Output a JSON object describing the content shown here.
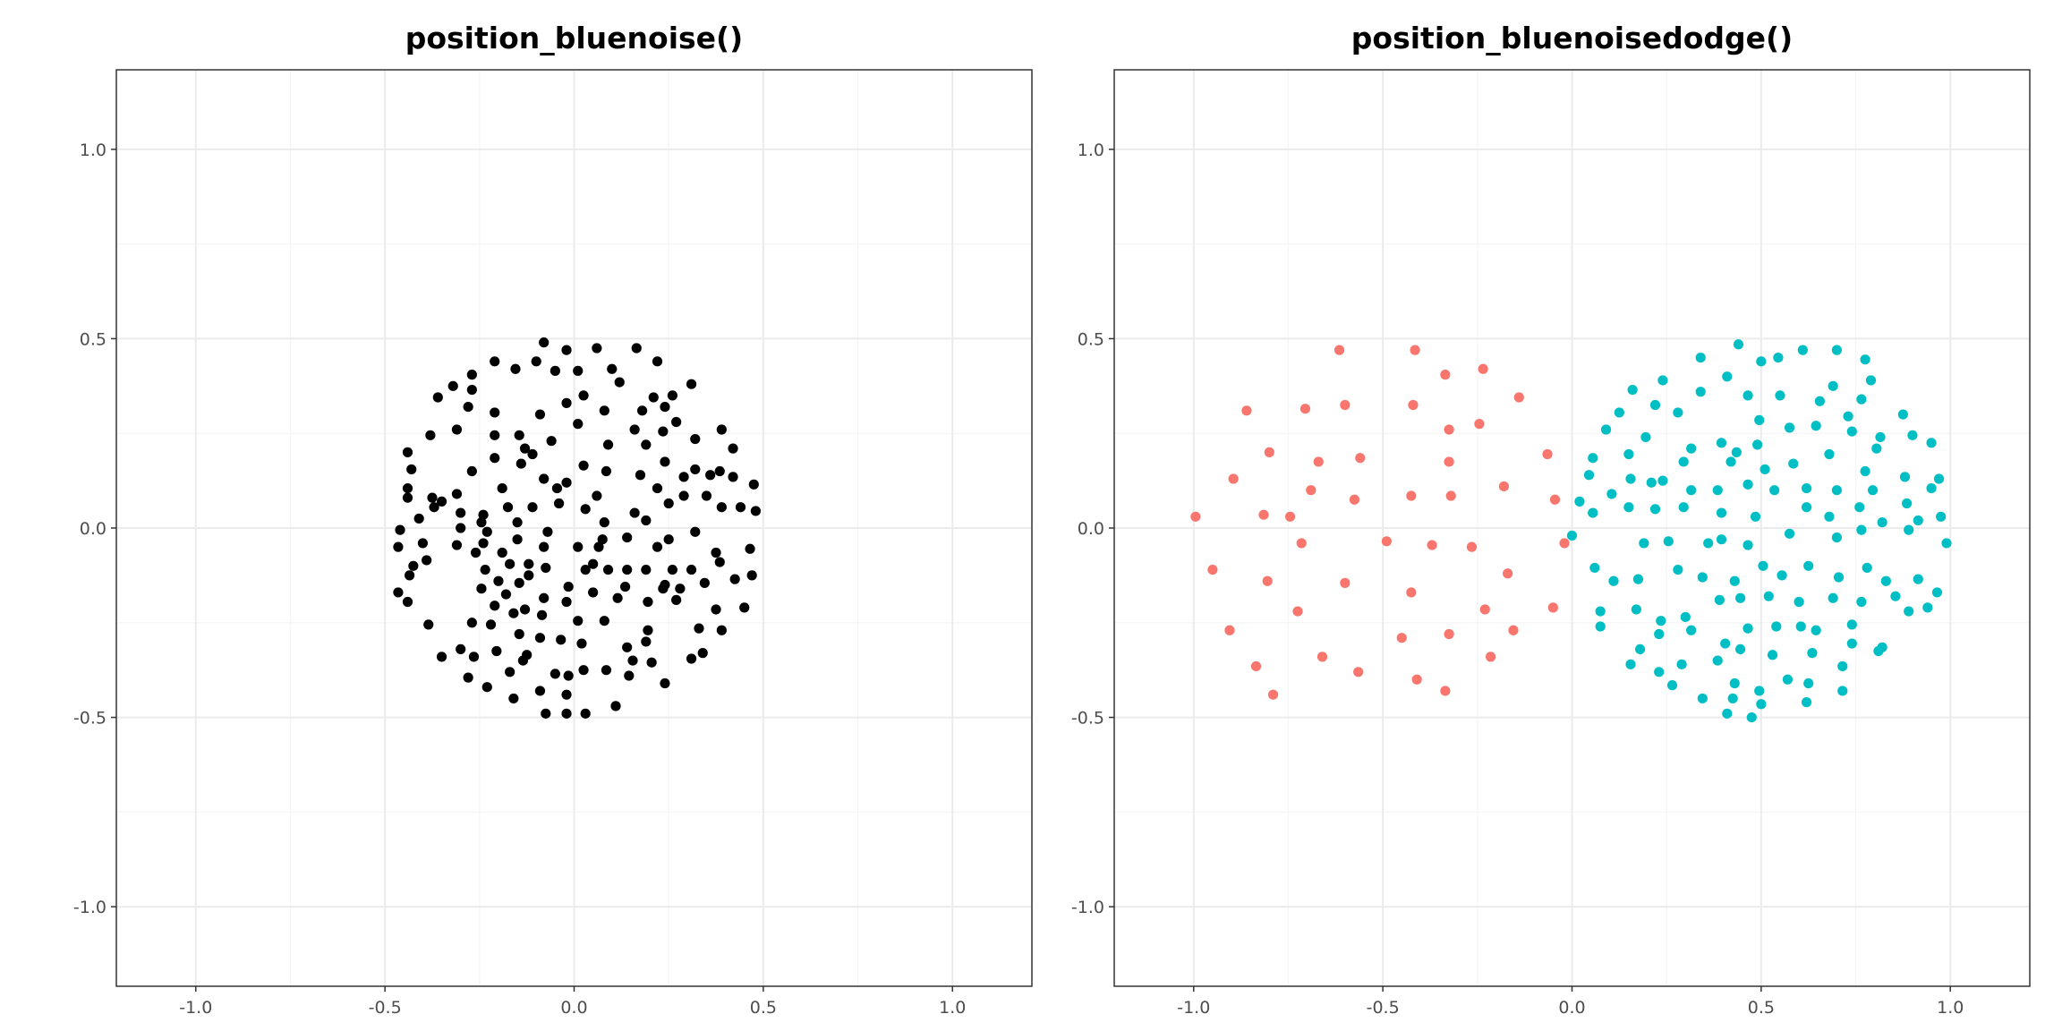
{
  "chart_data": [
    {
      "type": "scatter",
      "title": "position_bluenoise()",
      "xlim": [
        -1.21,
        1.21
      ],
      "ylim": [
        -1.21,
        1.21
      ],
      "xticks": [
        {
          "value": -1,
          "label": "-1.0"
        },
        {
          "value": -0.5,
          "label": "-0.5"
        },
        {
          "value": 0,
          "label": "0.0"
        },
        {
          "value": 0.5,
          "label": "0.5"
        },
        {
          "value": 1,
          "label": "1.0"
        }
      ],
      "yticks": [
        {
          "value": -1,
          "label": "-1.0"
        },
        {
          "value": -0.5,
          "label": "-0.5"
        },
        {
          "value": 0,
          "label": "0.0"
        },
        {
          "value": 0.5,
          "label": "0.5"
        },
        {
          "value": 1,
          "label": "1.0"
        }
      ],
      "xminor": [
        -0.75,
        -0.25,
        0.25,
        0.75
      ],
      "yminor": [
        -0.75,
        -0.25,
        0.25,
        0.75
      ],
      "grid": true,
      "series": [
        {
          "color": "#000000",
          "x": [
            -0.08,
            0.06,
            0.165,
            -0.02,
            0.22,
            -0.21,
            -0.1,
            -0.155,
            0.1,
            -0.05,
            0.01,
            -0.27,
            0.12,
            0.31,
            -0.32,
            -0.27,
            0.025,
            0.26,
            -0.36,
            0.21,
            -0.02,
            0.24,
            -0.28,
            0.08,
            0.18,
            -0.21,
            -0.09,
            0.27,
            0.01,
            0.39,
            -0.31,
            0.16,
            0.235,
            -0.38,
            -0.21,
            -0.145,
            0.32,
            -0.06,
            0.19,
            0.09,
            -0.13,
            0.42,
            -0.44,
            -0.11,
            -0.21,
            0.24,
            -0.14,
            0.025,
            -0.43,
            0.32,
            -0.27,
            0.085,
            0.385,
            0.175,
            0.36,
            0.29,
            0.42,
            -0.08,
            -0.02,
            0.475,
            -0.44,
            -0.19,
            -0.045,
            0.22,
            -0.31,
            0.06,
            0.29,
            0.35,
            -0.44,
            -0.375,
            -0.35,
            -0.04,
            0.25,
            -0.37,
            -0.175,
            -0.11,
            0.39,
            0.44,
            0.03,
            0.48,
            -0.3,
            0.16,
            -0.24,
            -0.41,
            0.19,
            -0.245,
            -0.15,
            0.08,
            -0.3,
            -0.46,
            -0.23,
            0.32,
            -0.07,
            0.14,
            -0.15,
            0.075,
            0.25,
            -0.4,
            -0.24,
            -0.31,
            0.01,
            0.065,
            0.22,
            -0.465,
            -0.08,
            0.465,
            -0.26,
            -0.19,
            0.375,
            -0.39,
            0.385,
            -0.17,
            -0.12,
            0.05,
            -0.425,
            -0.075,
            -0.235,
            0.03,
            0.09,
            0.14,
            0.19,
            0.26,
            0.31,
            -0.435,
            -0.12,
            0.47,
            0.425,
            -0.2,
            -0.145,
            0.345,
            0.24,
            -0.015,
            0.135,
            -0.245,
            0.235,
            0.28,
            0.05,
            -0.465,
            -0.18,
            -0.08,
            0.115,
            0.27,
            -0.44,
            -0.02,
            0.195,
            -0.21,
            0.45,
            -0.13,
            0.375,
            -0.16,
            -0.085,
            0.08,
            0.01,
            -0.27,
            -0.385,
            -0.22,
            0.33,
            0.195,
            0.39,
            -0.145,
            -0.09,
            -0.035,
            0.19,
            0.02,
            0.14,
            -0.3,
            -0.205,
            0.34,
            -0.125,
            -0.265,
            -0.35,
            0.31,
            0.155,
            -0.135,
            0.205,
            0.025,
            0.085,
            -0.17,
            -0.05,
            -0.015,
            0.145,
            -0.28,
            0.24,
            -0.23,
            -0.09,
            -0.02,
            -0.16,
            0.11,
            -0.075,
            -0.02,
            0.03
          ],
          "values": [
            0.49,
            0.475,
            0.475,
            0.47,
            0.44,
            0.44,
            0.44,
            0.42,
            0.42,
            0.415,
            0.415,
            0.405,
            0.385,
            0.38,
            0.375,
            0.365,
            0.35,
            0.35,
            0.345,
            0.345,
            0.33,
            0.32,
            0.32,
            0.31,
            0.31,
            0.305,
            0.3,
            0.28,
            0.275,
            0.26,
            0.26,
            0.26,
            0.255,
            0.245,
            0.245,
            0.245,
            0.235,
            0.23,
            0.22,
            0.22,
            0.21,
            0.21,
            0.2,
            0.195,
            0.185,
            0.175,
            0.17,
            0.165,
            0.155,
            0.155,
            0.15,
            0.15,
            0.15,
            0.14,
            0.14,
            0.135,
            0.135,
            0.13,
            0.12,
            0.115,
            0.105,
            0.105,
            0.105,
            0.105,
            0.09,
            0.085,
            0.085,
            0.085,
            0.08,
            0.08,
            0.07,
            0.065,
            0.065,
            0.055,
            0.055,
            0.055,
            0.055,
            0.055,
            0.05,
            0.045,
            0.04,
            0.04,
            0.035,
            0.025,
            0.02,
            0.015,
            0.015,
            0.015,
            0,
            -0.005,
            -0.01,
            -0.01,
            -0.01,
            -0.025,
            -0.03,
            -0.03,
            -0.03,
            -0.04,
            -0.04,
            -0.045,
            -0.05,
            -0.05,
            -0.05,
            -0.05,
            -0.05,
            -0.055,
            -0.065,
            -0.065,
            -0.065,
            -0.085,
            -0.09,
            -0.095,
            -0.095,
            -0.095,
            -0.1,
            -0.105,
            -0.11,
            -0.11,
            -0.11,
            -0.11,
            -0.11,
            -0.11,
            -0.11,
            -0.125,
            -0.125,
            -0.125,
            -0.135,
            -0.14,
            -0.145,
            -0.145,
            -0.15,
            -0.155,
            -0.155,
            -0.16,
            -0.16,
            -0.16,
            -0.17,
            -0.17,
            -0.175,
            -0.185,
            -0.185,
            -0.19,
            -0.195,
            -0.195,
            -0.195,
            -0.205,
            -0.21,
            -0.215,
            -0.215,
            -0.225,
            -0.23,
            -0.245,
            -0.245,
            -0.25,
            -0.255,
            -0.255,
            -0.265,
            -0.27,
            -0.27,
            -0.28,
            -0.29,
            -0.295,
            -0.3,
            -0.305,
            -0.315,
            -0.32,
            -0.325,
            -0.33,
            -0.335,
            -0.34,
            -0.34,
            -0.345,
            -0.35,
            -0.35,
            -0.355,
            -0.375,
            -0.375,
            -0.38,
            -0.385,
            -0.39,
            -0.39,
            -0.395,
            -0.41,
            -0.42,
            -0.43,
            -0.44,
            -0.45,
            -0.47,
            -0.49,
            -0.49,
            -0.49
          ]
        }
      ]
    },
    {
      "type": "scatter",
      "title": "position_bluenoisedodge()",
      "xlim": [
        -1.21,
        1.21
      ],
      "ylim": [
        -1.21,
        1.21
      ],
      "xticks": [
        {
          "value": -1,
          "label": "-1.0"
        },
        {
          "value": -0.5,
          "label": "-0.5"
        },
        {
          "value": 0,
          "label": "0.0"
        },
        {
          "value": 0.5,
          "label": "0.5"
        },
        {
          "value": 1,
          "label": "1.0"
        }
      ],
      "yticks": [
        {
          "value": -1,
          "label": "-1.0"
        },
        {
          "value": -0.5,
          "label": "-0.5"
        },
        {
          "value": 0,
          "label": "0.0"
        },
        {
          "value": 0.5,
          "label": "0.5"
        },
        {
          "value": 1,
          "label": "1.0"
        }
      ],
      "xminor": [
        -0.75,
        -0.25,
        0.25,
        0.75
      ],
      "yminor": [
        -0.75,
        -0.25,
        0.25,
        0.75
      ],
      "grid": true,
      "series": [
        {
          "color": "#F8766D",
          "x": [
            -0.615,
            -0.415,
            -0.235,
            -0.335,
            -0.14,
            -0.86,
            -0.705,
            -0.6,
            -0.42,
            -0.245,
            -0.325,
            -0.8,
            -0.67,
            -0.56,
            -0.065,
            -0.895,
            -0.325,
            -0.18,
            -0.69,
            -0.575,
            -0.425,
            -0.32,
            -0.045,
            -0.995,
            -0.815,
            -0.745,
            -0.715,
            -0.49,
            -0.37,
            -0.265,
            -0.02,
            -0.95,
            -0.805,
            -0.6,
            -0.425,
            -0.17,
            -0.05,
            -0.725,
            -0.23,
            -0.905,
            -0.325,
            -0.45,
            -0.155,
            -0.66,
            -0.835,
            -0.565,
            -0.215,
            -0.41,
            -0.79,
            -0.335
          ],
          "values": [
            0.47,
            0.47,
            0.42,
            0.405,
            0.345,
            0.31,
            0.315,
            0.325,
            0.325,
            0.275,
            0.26,
            0.2,
            0.175,
            0.185,
            0.195,
            0.13,
            0.175,
            0.11,
            0.1,
            0.075,
            0.085,
            0.085,
            0.075,
            0.03,
            0.035,
            0.03,
            -0.04,
            -0.035,
            -0.045,
            -0.05,
            -0.04,
            -0.11,
            -0.14,
            -0.145,
            -0.17,
            -0.12,
            -0.21,
            -0.22,
            -0.215,
            -0.27,
            -0.28,
            -0.29,
            -0.27,
            -0.34,
            -0.365,
            -0.38,
            -0.34,
            -0.4,
            -0.44,
            -0.43
          ]
        },
        {
          "color": "#00BFC4",
          "x": [
            0.44,
            0.61,
            0.7,
            0.34,
            0.545,
            0.775,
            0.5,
            0.41,
            0.24,
            0.79,
            0.16,
            0.34,
            0.69,
            0.465,
            0.55,
            0.765,
            0.655,
            0.875,
            0.22,
            0.09,
            0.28,
            0.495,
            0.73,
            0.125,
            0.575,
            0.74,
            0.645,
            0.9,
            0.195,
            0.395,
            0.49,
            0.815,
            0.95,
            0.045,
            0.055,
            0.15,
            0.315,
            0.435,
            0.155,
            0.295,
            0.42,
            0.68,
            0.805,
            0.21,
            0.51,
            0.585,
            0.775,
            0.88,
            0.97,
            0.95,
            0.02,
            0.105,
            0.24,
            0.315,
            0.385,
            0.465,
            0.535,
            0.62,
            0.7,
            0.795,
            0.76,
            0.885,
            0.055,
            0.15,
            0.22,
            0.295,
            0.395,
            0.485,
            0.62,
            0.68,
            0.82,
            0.915,
            0.975,
            0,
            0.19,
            0.255,
            0.36,
            0.395,
            0.465,
            0.575,
            0.7,
            0.765,
            0.89,
            0.99,
            0.06,
            0.11,
            0.175,
            0.28,
            0.345,
            0.43,
            0.505,
            0.555,
            0.625,
            0.705,
            0.78,
            0.83,
            0.915,
            0.965,
            0.075,
            0.17,
            0.235,
            0.3,
            0.39,
            0.445,
            0.52,
            0.6,
            0.69,
            0.765,
            0.855,
            0.89,
            0.94,
            0.075,
            0.18,
            0.23,
            0.315,
            0.405,
            0.465,
            0.54,
            0.605,
            0.645,
            0.74,
            0.74,
            0.81,
            0.155,
            0.23,
            0.29,
            0.385,
            0.445,
            0.53,
            0.635,
            0.715,
            0.82,
            0.265,
            0.43,
            0.495,
            0.57,
            0.625,
            0.715,
            0.345,
            0.425,
            0.5,
            0.62,
            0.41,
            0.475
          ],
          "values": [
            0.485,
            0.47,
            0.47,
            0.45,
            0.45,
            0.445,
            0.44,
            0.4,
            0.39,
            0.39,
            0.365,
            0.36,
            0.375,
            0.35,
            0.35,
            0.34,
            0.335,
            0.3,
            0.325,
            0.26,
            0.305,
            0.285,
            0.295,
            0.305,
            0.265,
            0.255,
            0.27,
            0.245,
            0.24,
            0.225,
            0.22,
            0.24,
            0.225,
            0.14,
            0.185,
            0.195,
            0.21,
            0.2,
            0.13,
            0.175,
            0.175,
            0.195,
            0.21,
            0.12,
            0.155,
            0.17,
            0.15,
            0.135,
            0.13,
            0.105,
            0.07,
            0.09,
            0.125,
            0.1,
            0.1,
            0.115,
            0.1,
            0.105,
            0.1,
            0.1,
            0.055,
            0.065,
            0.04,
            0.055,
            0.05,
            0.055,
            0.04,
            0.03,
            0.055,
            0.03,
            0.015,
            0.02,
            0.03,
            -0.02,
            -0.04,
            -0.035,
            -0.04,
            -0.03,
            -0.045,
            -0.015,
            -0.025,
            -0.005,
            -0.005,
            -0.04,
            -0.105,
            -0.14,
            -0.135,
            -0.11,
            -0.13,
            -0.14,
            -0.1,
            -0.125,
            -0.1,
            -0.13,
            -0.105,
            -0.14,
            -0.135,
            -0.17,
            -0.22,
            -0.215,
            -0.245,
            -0.235,
            -0.19,
            -0.185,
            -0.18,
            -0.195,
            -0.185,
            -0.195,
            -0.18,
            -0.22,
            -0.21,
            -0.26,
            -0.32,
            -0.28,
            -0.27,
            -0.305,
            -0.265,
            -0.26,
            -0.26,
            -0.27,
            -0.305,
            -0.255,
            -0.325,
            -0.36,
            -0.38,
            -0.36,
            -0.35,
            -0.32,
            -0.335,
            -0.33,
            -0.365,
            -0.315,
            -0.415,
            -0.41,
            -0.43,
            -0.4,
            -0.41,
            -0.43,
            -0.45,
            -0.45,
            -0.465,
            -0.46,
            -0.49,
            -0.5
          ]
        }
      ]
    }
  ]
}
